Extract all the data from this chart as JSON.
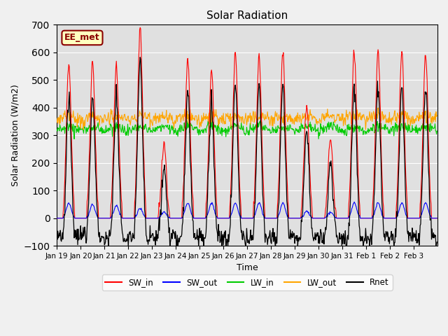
{
  "title": "Solar Radiation",
  "ylabel": "Solar Radiation (W/m2)",
  "xlabel": "Time",
  "ylim": [
    -100,
    700
  ],
  "annotation": "EE_met",
  "colors": {
    "SW_in": "#FF0000",
    "SW_out": "#0000FF",
    "LW_in": "#00CC00",
    "LW_out": "#FFA500",
    "Rnet": "#000000"
  },
  "background_color": "#E0E0E0",
  "xtick_labels": [
    "Jan 19",
    "Jan 20",
    "Jan 21",
    "Jan 22",
    "Jan 23",
    "Jan 24",
    "Jan 25",
    "Jan 26",
    "Jan 27",
    "Jan 28",
    "Jan 29",
    "Jan 30",
    "Jan 31",
    "Feb 1",
    "Feb 2",
    "Feb 3"
  ],
  "n_days": 16,
  "pts_per_day": 48,
  "SW_in_peaks": [
    560,
    565,
    550,
    690,
    270,
    575,
    535,
    600,
    585,
    600,
    410,
    285,
    600,
    610,
    605,
    595
  ],
  "SW_out_peaks": [
    55,
    50,
    45,
    35,
    22,
    55,
    55,
    55,
    55,
    55,
    25,
    22,
    55,
    55,
    55,
    55
  ],
  "LW_in_base": 315,
  "LW_out_base": 355,
  "Rnet_night": -70
}
